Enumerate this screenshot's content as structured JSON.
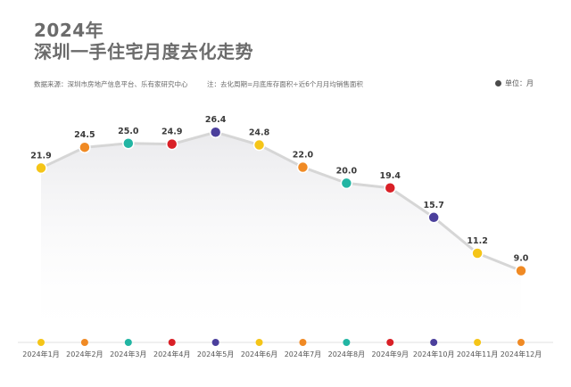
{
  "header": {
    "year": "2024年",
    "title": "深圳一手住宅月度去化走势",
    "source": "数据来源：深圳市房地产信息平台、乐有家研究中心",
    "note": "注：去化周期=月底库存面积÷近6个月月均销售面积",
    "unit": "单位：月"
  },
  "colors": {
    "line": "#d6d6d6",
    "point_cycle": [
      "#f5c518",
      "#f08a24",
      "#22b5a3",
      "#d92027",
      "#4b3f9c"
    ]
  },
  "chart_data": {
    "type": "line",
    "title": "深圳一手住宅月度去化走势",
    "xlabel": "",
    "ylabel": "",
    "unit": "月",
    "categories": [
      "2024年1月",
      "2024年2月",
      "2024年3月",
      "2024年4月",
      "2024年5月",
      "2024年6月",
      "2024年7月",
      "2024年8月",
      "2024年9月",
      "2024年10月",
      "2024年11月",
      "2024年12月"
    ],
    "series": [
      {
        "values": [
          21.9,
          24.5,
          25.0,
          24.9,
          26.4,
          24.8,
          22.0,
          20.0,
          19.4,
          15.7,
          11.2,
          9.0
        ]
      }
    ],
    "data_labels": [
      "21.9",
      "24.5",
      "25.0",
      "24.9",
      "26.4",
      "24.8",
      "22.0",
      "20.0",
      "19.4",
      "15.7",
      "11.2",
      "9.0"
    ],
    "point_colors": [
      "#f5c518",
      "#f08a24",
      "#22b5a3",
      "#d92027",
      "#4b3f9c",
      "#f5c518",
      "#f08a24",
      "#22b5a3",
      "#d92027",
      "#4b3f9c",
      "#f5c518",
      "#f08a24"
    ],
    "grid": false,
    "legend": "none"
  }
}
